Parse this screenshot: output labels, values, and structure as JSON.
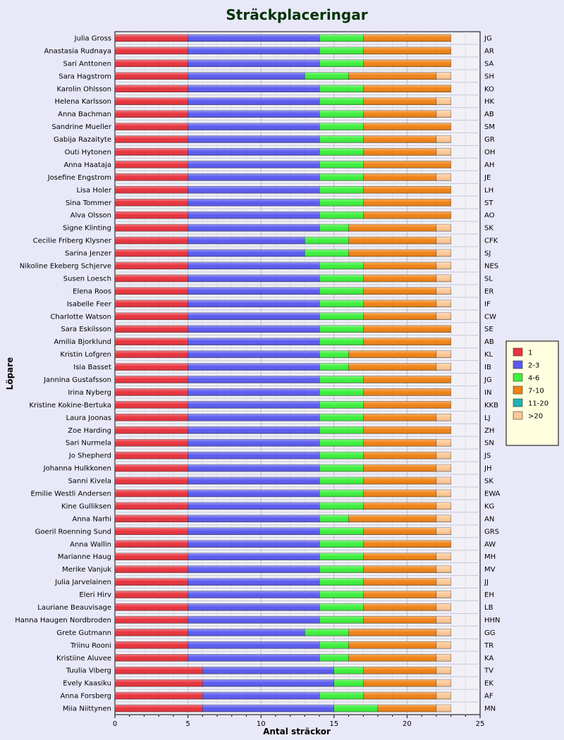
{
  "chart_data": {
    "type": "bar",
    "orientation": "horizontal",
    "stacked": true,
    "title": "Sträckplaceringar",
    "xlabel": "Antal sträckor",
    "ylabel": "Löpare",
    "xlim": [
      0,
      25
    ],
    "xticks": [
      0,
      5,
      10,
      15,
      20,
      25
    ],
    "grid": true,
    "legend_position": "right",
    "series": [
      {
        "name": "1",
        "color": "#e8323c"
      },
      {
        "name": "2-3",
        "color": "#5a5af0"
      },
      {
        "name": "4-6",
        "color": "#3cf03c"
      },
      {
        "name": "7-10",
        "color": "#f08214"
      },
      {
        "name": "11-20",
        "color": "#1eb4b4"
      },
      {
        "name": ">20",
        "color": "#ffc896"
      }
    ],
    "runners": [
      {
        "name": "Julia Gross",
        "abbr": "JG",
        "values": [
          5,
          9,
          3,
          6,
          0,
          0
        ]
      },
      {
        "name": "Anastasia Rudnaya",
        "abbr": "AR",
        "values": [
          5,
          9,
          3,
          6,
          0,
          0
        ]
      },
      {
        "name": "Sari Anttonen",
        "abbr": "SA",
        "values": [
          5,
          9,
          3,
          6,
          0,
          0
        ]
      },
      {
        "name": "Sara Hagstrom",
        "abbr": "SH",
        "values": [
          5,
          8,
          3,
          6,
          0,
          1
        ]
      },
      {
        "name": "Karolin Ohlsson",
        "abbr": "KO",
        "values": [
          5,
          9,
          3,
          6,
          0,
          0
        ]
      },
      {
        "name": "Helena Karlsson",
        "abbr": "HK",
        "values": [
          5,
          9,
          3,
          5,
          0,
          1
        ]
      },
      {
        "name": "Anna Bachman",
        "abbr": "AB",
        "values": [
          5,
          9,
          3,
          5,
          0,
          1
        ]
      },
      {
        "name": "Sandrine Mueller",
        "abbr": "SM",
        "values": [
          5,
          9,
          3,
          6,
          0,
          0
        ]
      },
      {
        "name": "Gabija Razaityte",
        "abbr": "GR",
        "values": [
          5,
          9,
          3,
          5,
          0,
          1
        ]
      },
      {
        "name": "Outi Hytonen",
        "abbr": "OH",
        "values": [
          5,
          9,
          3,
          5,
          0,
          1
        ]
      },
      {
        "name": "Anna Haataja",
        "abbr": "AH",
        "values": [
          5,
          9,
          3,
          6,
          0,
          0
        ]
      },
      {
        "name": "Josefine Engstrom",
        "abbr": "JE",
        "values": [
          5,
          9,
          3,
          5,
          0,
          1
        ]
      },
      {
        "name": "Lisa Holer",
        "abbr": "LH",
        "values": [
          5,
          9,
          3,
          6,
          0,
          0
        ]
      },
      {
        "name": "Sina Tommer",
        "abbr": "ST",
        "values": [
          5,
          9,
          3,
          6,
          0,
          0
        ]
      },
      {
        "name": "Alva Olsson",
        "abbr": "AO",
        "values": [
          5,
          9,
          3,
          6,
          0,
          0
        ]
      },
      {
        "name": "Signe Klinting",
        "abbr": "SK",
        "values": [
          5,
          9,
          2,
          6,
          0,
          1
        ]
      },
      {
        "name": "Cecilie Friberg Klysner",
        "abbr": "CFK",
        "values": [
          5,
          8,
          3,
          6,
          0,
          1
        ]
      },
      {
        "name": "Sarina Jenzer",
        "abbr": "SJ",
        "values": [
          5,
          8,
          3,
          6,
          0,
          1
        ]
      },
      {
        "name": "Nikoline Ekeberg Schjerve",
        "abbr": "NES",
        "values": [
          5,
          9,
          3,
          5,
          0,
          1
        ]
      },
      {
        "name": "Susen Loesch",
        "abbr": "SL",
        "values": [
          5,
          9,
          3,
          5,
          0,
          1
        ]
      },
      {
        "name": "Elena Roos",
        "abbr": "ER",
        "values": [
          5,
          9,
          3,
          5,
          0,
          1
        ]
      },
      {
        "name": "Isabelle Feer",
        "abbr": "IF",
        "values": [
          5,
          9,
          3,
          5,
          0,
          1
        ]
      },
      {
        "name": "Charlotte Watson",
        "abbr": "CW",
        "values": [
          5,
          9,
          3,
          5,
          0,
          1
        ]
      },
      {
        "name": "Sara Eskilsson",
        "abbr": "SE",
        "values": [
          5,
          9,
          3,
          6,
          0,
          0
        ]
      },
      {
        "name": "Amilia Bjorklund",
        "abbr": "AB",
        "values": [
          5,
          9,
          3,
          6,
          0,
          0
        ]
      },
      {
        "name": "Kristin Lofgren",
        "abbr": "KL",
        "values": [
          5,
          9,
          2,
          6,
          0,
          1
        ]
      },
      {
        "name": "Isia Basset",
        "abbr": "IB",
        "values": [
          5,
          9,
          2,
          6,
          0,
          1
        ]
      },
      {
        "name": "Jannina Gustafsson",
        "abbr": "JG",
        "values": [
          5,
          9,
          3,
          6,
          0,
          0
        ]
      },
      {
        "name": "Irina Nyberg",
        "abbr": "IN",
        "values": [
          5,
          9,
          3,
          6,
          0,
          0
        ]
      },
      {
        "name": "Kristine Kokine-Bertuka",
        "abbr": "KKB",
        "values": [
          5,
          9,
          3,
          6,
          0,
          0
        ]
      },
      {
        "name": "Laura Joonas",
        "abbr": "LJ",
        "values": [
          5,
          9,
          3,
          5,
          0,
          1
        ]
      },
      {
        "name": "Zoe Harding",
        "abbr": "ZH",
        "values": [
          5,
          9,
          3,
          6,
          0,
          0
        ]
      },
      {
        "name": "Sari Nurmela",
        "abbr": "SN",
        "values": [
          5,
          9,
          3,
          5,
          0,
          1
        ]
      },
      {
        "name": "Jo Shepherd",
        "abbr": "JS",
        "values": [
          5,
          9,
          3,
          5,
          0,
          1
        ]
      },
      {
        "name": "Johanna Hulkkonen",
        "abbr": "JH",
        "values": [
          5,
          9,
          3,
          5,
          0,
          1
        ]
      },
      {
        "name": "Sanni Kivela",
        "abbr": "SK",
        "values": [
          5,
          9,
          3,
          5,
          0,
          1
        ]
      },
      {
        "name": "Emilie Westli Andersen",
        "abbr": "EWA",
        "values": [
          5,
          9,
          3,
          5,
          0,
          1
        ]
      },
      {
        "name": "Kine Gulliksen",
        "abbr": "KG",
        "values": [
          5,
          9,
          3,
          5,
          0,
          1
        ]
      },
      {
        "name": "Anna Narhi",
        "abbr": "AN",
        "values": [
          5,
          9,
          2,
          6,
          0,
          1
        ]
      },
      {
        "name": "Goeril Roenning Sund",
        "abbr": "GRS",
        "values": [
          5,
          9,
          3,
          5,
          0,
          1
        ]
      },
      {
        "name": "Anna Wallin",
        "abbr": "AW",
        "values": [
          5,
          9,
          3,
          6,
          0,
          0
        ]
      },
      {
        "name": "Marianne Haug",
        "abbr": "MH",
        "values": [
          5,
          9,
          3,
          5,
          0,
          1
        ]
      },
      {
        "name": "Merike Vanjuk",
        "abbr": "MV",
        "values": [
          5,
          9,
          3,
          5,
          0,
          1
        ]
      },
      {
        "name": "Julia Jarvelainen",
        "abbr": "JJ",
        "values": [
          5,
          9,
          3,
          5,
          0,
          1
        ]
      },
      {
        "name": "Eleri Hirv",
        "abbr": "EH",
        "values": [
          5,
          9,
          3,
          5,
          0,
          1
        ]
      },
      {
        "name": "Lauriane Beauvisage",
        "abbr": "LB",
        "values": [
          5,
          9,
          3,
          5,
          0,
          1
        ]
      },
      {
        "name": "Hanna Haugen Nordbroden",
        "abbr": "HHN",
        "values": [
          5,
          9,
          3,
          5,
          0,
          1
        ]
      },
      {
        "name": "Grete Gutmann",
        "abbr": "GG",
        "values": [
          5,
          8,
          3,
          6,
          0,
          1
        ]
      },
      {
        "name": "Triinu Rooni",
        "abbr": "TR",
        "values": [
          5,
          9,
          2,
          6,
          0,
          1
        ]
      },
      {
        "name": "Kristiine Aluvee",
        "abbr": "KA",
        "values": [
          5,
          9,
          2,
          6,
          0,
          1
        ]
      },
      {
        "name": "Tuulia Viberg",
        "abbr": "TV",
        "values": [
          6,
          9,
          2,
          5,
          0,
          1
        ]
      },
      {
        "name": "Evely Kaasiku",
        "abbr": "EK",
        "values": [
          6,
          9,
          2,
          5,
          0,
          1
        ]
      },
      {
        "name": "Anna Forsberg",
        "abbr": "AF",
        "values": [
          6,
          8,
          3,
          5,
          0,
          1
        ]
      },
      {
        "name": "Miia Niittynen",
        "abbr": "MN",
        "values": [
          6,
          9,
          3,
          4,
          0,
          1
        ]
      }
    ]
  }
}
